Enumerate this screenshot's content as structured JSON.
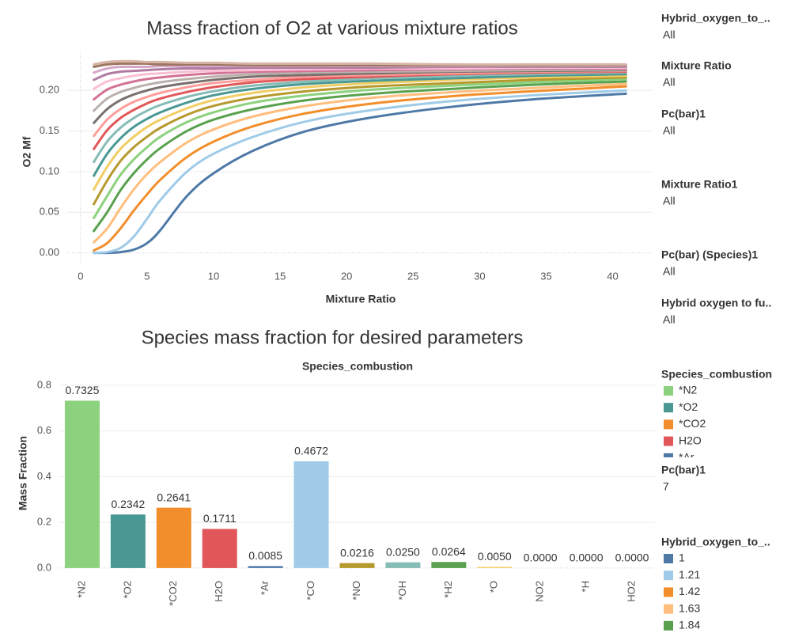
{
  "chart_data": [
    {
      "type": "line",
      "title": "Mass fraction of O2 at various mixture ratios",
      "x_label": "Mixture Ratio",
      "y_label": "O2 Mf",
      "x": [
        1,
        2,
        3,
        4,
        5,
        6,
        8,
        10,
        13,
        17,
        22,
        28,
        34,
        41
      ],
      "xlim": [
        -1,
        43
      ],
      "xticks": [
        0,
        5,
        10,
        15,
        20,
        25,
        30,
        35,
        40
      ],
      "ylim": [
        -0.015,
        0.248
      ],
      "yticks": [
        {
          "value": 0,
          "label": "0.00"
        },
        {
          "value": 0.05,
          "label": "0.05"
        },
        {
          "value": 0.1,
          "label": "0.10"
        },
        {
          "value": 0.15,
          "label": "0.15"
        },
        {
          "value": 0.2,
          "label": "0.20"
        }
      ],
      "grid": true,
      "series": [
        {
          "color": "#4e79a7",
          "values": [
            0,
            0,
            0.001,
            0.004,
            0.012,
            0.028,
            0.07,
            0.098,
            0.126,
            0.15,
            0.167,
            0.18,
            0.189,
            0.196
          ]
        },
        {
          "color": "#a0cbe8",
          "values": [
            0,
            0.001,
            0.006,
            0.02,
            0.042,
            0.065,
            0.1,
            0.122,
            0.143,
            0.162,
            0.176,
            0.187,
            0.194,
            0.2
          ]
        },
        {
          "color": "#f28e2b",
          "values": [
            0.003,
            0.012,
            0.03,
            0.052,
            0.072,
            0.09,
            0.118,
            0.137,
            0.156,
            0.172,
            0.184,
            0.193,
            0.199,
            0.205
          ]
        },
        {
          "color": "#ffbe7d",
          "values": [
            0.013,
            0.03,
            0.055,
            0.078,
            0.097,
            0.112,
            0.136,
            0.152,
            0.168,
            0.181,
            0.191,
            0.198,
            0.203,
            0.208
          ]
        },
        {
          "color": "#59a14f",
          "values": [
            0.027,
            0.05,
            0.077,
            0.098,
            0.115,
            0.129,
            0.15,
            0.164,
            0.177,
            0.188,
            0.196,
            0.202,
            0.207,
            0.211
          ]
        },
        {
          "color": "#8cd17d",
          "values": [
            0.043,
            0.07,
            0.096,
            0.115,
            0.13,
            0.143,
            0.161,
            0.173,
            0.185,
            0.194,
            0.201,
            0.206,
            0.21,
            0.214
          ]
        },
        {
          "color": "#b6992d",
          "values": [
            0.06,
            0.089,
            0.113,
            0.13,
            0.143,
            0.154,
            0.17,
            0.181,
            0.191,
            0.199,
            0.205,
            0.209,
            0.213,
            0.216
          ]
        },
        {
          "color": "#f1ce63",
          "values": [
            0.078,
            0.106,
            0.128,
            0.143,
            0.155,
            0.164,
            0.178,
            0.188,
            0.197,
            0.204,
            0.209,
            0.213,
            0.216,
            0.218
          ]
        },
        {
          "color": "#499894",
          "values": [
            0.095,
            0.122,
            0.141,
            0.155,
            0.165,
            0.173,
            0.185,
            0.194,
            0.202,
            0.208,
            0.212,
            0.215,
            0.218,
            0.22
          ]
        },
        {
          "color": "#86bcb6",
          "values": [
            0.112,
            0.137,
            0.154,
            0.166,
            0.175,
            0.182,
            0.192,
            0.199,
            0.206,
            0.211,
            0.215,
            0.218,
            0.22,
            0.222
          ]
        },
        {
          "color": "#e15759",
          "values": [
            0.128,
            0.151,
            0.166,
            0.176,
            0.184,
            0.19,
            0.198,
            0.204,
            0.21,
            0.214,
            0.217,
            0.22,
            0.222,
            0.223
          ]
        },
        {
          "color": "#ff9d9a",
          "values": [
            0.144,
            0.164,
            0.177,
            0.186,
            0.192,
            0.197,
            0.204,
            0.209,
            0.213,
            0.217,
            0.219,
            0.221,
            0.223,
            0.224
          ]
        },
        {
          "color": "#79706e",
          "values": [
            0.16,
            0.177,
            0.188,
            0.195,
            0.2,
            0.204,
            0.209,
            0.213,
            0.217,
            0.219,
            0.221,
            0.223,
            0.224,
            0.225
          ]
        },
        {
          "color": "#bab0ac",
          "values": [
            0.175,
            0.19,
            0.198,
            0.203,
            0.207,
            0.21,
            0.214,
            0.217,
            0.22,
            0.222,
            0.223,
            0.224,
            0.225,
            0.226
          ]
        },
        {
          "color": "#d37295",
          "values": [
            0.189,
            0.201,
            0.207,
            0.211,
            0.214,
            0.216,
            0.219,
            0.221,
            0.223,
            0.224,
            0.225,
            0.226,
            0.227,
            0.227
          ]
        },
        {
          "color": "#fabfd2",
          "values": [
            0.202,
            0.211,
            0.215,
            0.218,
            0.22,
            0.221,
            0.223,
            0.224,
            0.225,
            0.226,
            0.227,
            0.227,
            0.228,
            0.228
          ]
        },
        {
          "color": "#b07aa1",
          "values": [
            0.213,
            0.22,
            0.223,
            0.224,
            0.225,
            0.226,
            0.227,
            0.227,
            0.228,
            0.228,
            0.228,
            0.229,
            0.229,
            0.229
          ]
        },
        {
          "color": "#d4a6c8",
          "values": [
            0.222,
            0.227,
            0.229,
            0.229,
            0.229,
            0.23,
            0.23,
            0.23,
            0.23,
            0.23,
            0.23,
            0.23,
            0.23,
            0.23
          ]
        },
        {
          "color": "#9d7660",
          "values": [
            0.229,
            0.232,
            0.233,
            0.233,
            0.233,
            0.232,
            0.232,
            0.232,
            0.231,
            0.231,
            0.231,
            0.231,
            0.231,
            0.231
          ]
        },
        {
          "color": "#d7b5a6",
          "values": [
            0.232,
            0.235,
            0.236,
            0.236,
            0.235,
            0.235,
            0.234,
            0.234,
            0.233,
            0.233,
            0.233,
            0.232,
            0.232,
            0.232
          ]
        }
      ]
    },
    {
      "type": "bar",
      "title": "Species mass fraction for desired parameters",
      "header": "Species_combustion",
      "y_label": "Mass Fraction",
      "categories": [
        "*N2",
        "*O2",
        "*CO2",
        "H2O",
        "*Ar",
        "*CO",
        "*NO",
        "*OH",
        "*H2",
        "*O",
        "NO2",
        "*H",
        "HO2"
      ],
      "values": [
        0.7325,
        0.2342,
        0.2641,
        0.1711,
        0.0085,
        0.4672,
        0.0216,
        0.025,
        0.0264,
        0.005,
        0,
        0,
        0
      ],
      "value_labels": [
        "0.7325",
        "0.2342",
        "0.2641",
        "0.1711",
        "0.0085",
        "0.4672",
        "0.0216",
        "0.0250",
        "0.0264",
        "0.0050",
        "0.0000",
        "0.0000",
        "0.0000"
      ],
      "colors": [
        "#8cd17d",
        "#499894",
        "#f28e2b",
        "#e15759",
        "#4e79a7",
        "#a0cbe8",
        "#b6992d",
        "#86bcb6",
        "#59a14f",
        "#f1ce63",
        "#ff9d9a",
        "#79706e",
        "#d37295"
      ],
      "ylim": [
        -0.035,
        0.824
      ],
      "yticks": [
        {
          "value": 0,
          "label": "0.0"
        },
        0.2,
        0.4,
        0.6,
        0.8
      ],
      "grid": true
    }
  ],
  "filters": [
    {
      "title": "Hybrid_oxygen_to_..",
      "value": "All"
    },
    {
      "title": "Mixture Ratio",
      "value": "All"
    },
    {
      "title": "Pc(bar)1",
      "value": "All"
    },
    {
      "title": "Mixture Ratio1",
      "value": "All"
    },
    {
      "title": "Pc(bar) (Species)1",
      "value": "All"
    },
    {
      "title": "Hybrid oxygen to fu..",
      "value": "All"
    }
  ],
  "legends": [
    {
      "title": "Species_combustion",
      "items": [
        {
          "label": "*N2",
          "color": "#8cd17d"
        },
        {
          "label": "*O2",
          "color": "#499894"
        },
        {
          "label": "*CO2",
          "color": "#f28e2b"
        },
        {
          "label": "H2O",
          "color": "#e15759"
        },
        {
          "label": "*Ar",
          "color": "#4e79a7"
        }
      ]
    },
    {
      "title": "Hybrid_oxygen_to_..",
      "items": [
        {
          "label": "1",
          "color": "#4e79a7"
        },
        {
          "label": "1.21",
          "color": "#a0cbe8"
        },
        {
          "label": "1.42",
          "color": "#f28e2b"
        },
        {
          "label": "1.63",
          "color": "#ffbe7d"
        },
        {
          "label": "1.84",
          "color": "#59a14f"
        }
      ]
    }
  ],
  "parameter": {
    "title": "Pc(bar)1",
    "value": "7"
  }
}
